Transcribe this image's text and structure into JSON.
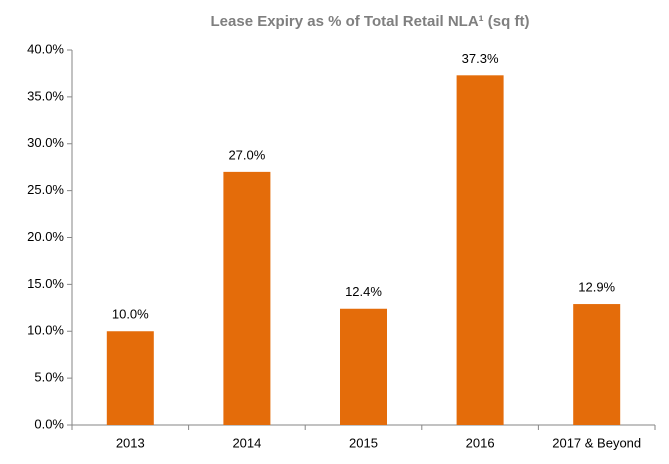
{
  "chart_data": {
    "type": "bar",
    "title": "Lease Expiry as % of Total Retail NLA¹ (sq ft)",
    "categories": [
      "2013",
      "2014",
      "2015",
      "2016",
      "2017 & Beyond"
    ],
    "values": [
      10.0,
      27.0,
      12.4,
      37.3,
      12.9
    ],
    "value_labels": [
      "10.0%",
      "27.0%",
      "12.4%",
      "37.3%",
      "12.9%"
    ],
    "color": "#e46c0a",
    "ylim": [
      0,
      40
    ],
    "yticks": [
      {
        "value": 0,
        "label": "0.0%"
      },
      {
        "value": 5,
        "label": "5.0%"
      },
      {
        "value": 10,
        "label": "10.0%"
      },
      {
        "value": 15,
        "label": "15.0%"
      },
      {
        "value": 20,
        "label": "20.0%"
      },
      {
        "value": 25,
        "label": "25.0%"
      },
      {
        "value": 30,
        "label": "30.0%"
      },
      {
        "value": 35,
        "label": "35.0%"
      },
      {
        "value": 40,
        "label": "40.0%"
      }
    ],
    "grid": false
  }
}
